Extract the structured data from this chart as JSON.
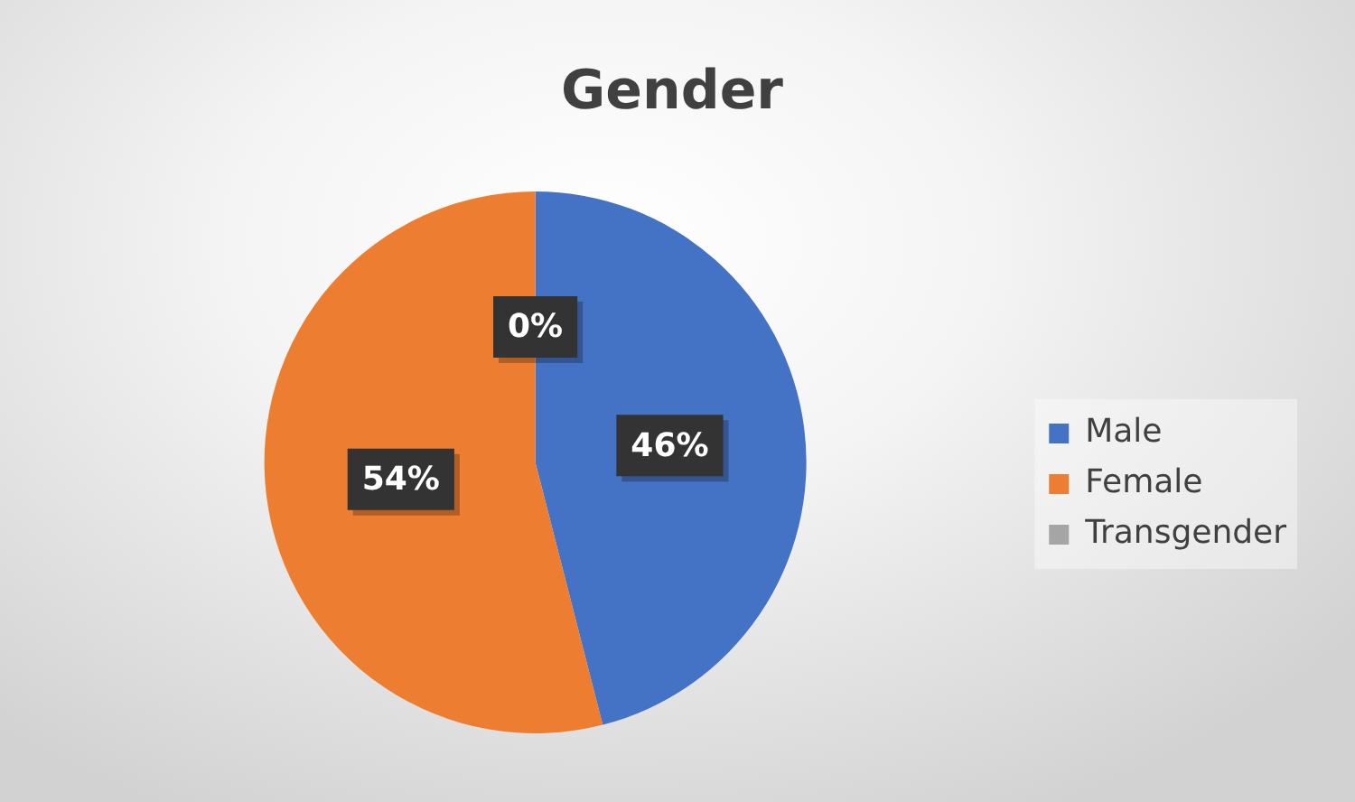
{
  "chart_data": {
    "type": "pie",
    "title": "Gender",
    "categories": [
      "Male",
      "Female",
      "Transgender"
    ],
    "values": [
      46,
      54,
      0
    ],
    "colors": [
      "#4472c4",
      "#ed7d31",
      "#a5a5a5"
    ],
    "value_labels": [
      "46%",
      "54%",
      "0%"
    ],
    "legend": "right"
  }
}
